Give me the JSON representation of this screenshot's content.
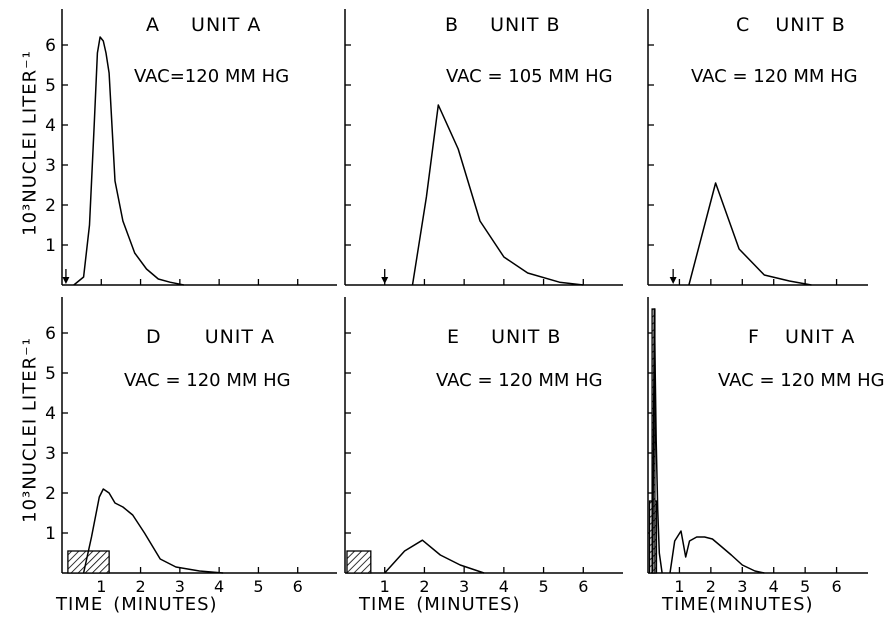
{
  "figure": {
    "y_axis_label": "10³NUCLEI LITER⁻¹",
    "x_axis_label_main": "TIME",
    "x_axis_label_unit": "(MINUTES)"
  },
  "chart_data": [
    {
      "type": "line",
      "panel": "A",
      "title_letter": "A",
      "title_unit": "UNIT A",
      "annotation": "VAC=120 MM HG",
      "x_ticks": [
        1,
        2,
        3,
        4,
        5,
        6
      ],
      "y_ticks": [
        1,
        2,
        3,
        4,
        5,
        6
      ],
      "xlim": [
        0,
        7
      ],
      "ylim": [
        0,
        6.9
      ],
      "start_marker_x": 0.1,
      "series": [
        {
          "x": [
            0.3,
            0.55,
            0.7,
            0.82,
            0.9,
            0.97,
            1.05,
            1.12,
            1.2,
            1.35,
            1.55,
            1.85,
            2.15,
            2.45,
            2.75,
            3.1
          ],
          "y": [
            0,
            0.2,
            1.5,
            4.0,
            5.8,
            6.2,
            6.1,
            5.8,
            5.3,
            2.6,
            1.6,
            0.8,
            0.4,
            0.15,
            0.07,
            0
          ]
        }
      ]
    },
    {
      "type": "line",
      "panel": "B",
      "title_letter": "B",
      "title_unit": "UNIT B",
      "annotation": "VAC = 105 MM HG",
      "x_ticks": [
        1,
        2,
        3,
        4,
        5,
        6
      ],
      "y_ticks": [
        1,
        2,
        3,
        4,
        5,
        6
      ],
      "xlim": [
        0,
        7
      ],
      "ylim": [
        0,
        6.9
      ],
      "start_marker_x": 1.0,
      "series": [
        {
          "x": [
            1.7,
            2.05,
            2.35,
            2.85,
            3.4,
            4.0,
            4.6,
            5.4,
            6.0
          ],
          "y": [
            0,
            2.2,
            4.5,
            3.4,
            1.6,
            0.7,
            0.3,
            0.07,
            0
          ]
        }
      ]
    },
    {
      "type": "line",
      "panel": "C",
      "title_letter": "C",
      "title_unit": "UNIT B",
      "annotation": "VAC = 120 MM HG",
      "x_ticks": [
        1,
        2,
        3,
        4,
        5,
        6
      ],
      "y_ticks": [
        1,
        2,
        3,
        4,
        5,
        6
      ],
      "xlim": [
        0,
        7
      ],
      "ylim": [
        0,
        6.9
      ],
      "start_marker_x": 0.8,
      "series": [
        {
          "x": [
            1.3,
            2.15,
            2.9,
            3.7,
            4.5,
            5.2
          ],
          "y": [
            0,
            2.55,
            0.9,
            0.25,
            0.1,
            0
          ]
        }
      ]
    },
    {
      "type": "line",
      "panel": "D",
      "title_letter": "D",
      "title_unit": "UNIT A",
      "annotation": "VAC = 120 MM HG",
      "x_ticks": [
        1,
        2,
        3,
        4,
        5,
        6
      ],
      "y_ticks": [
        1,
        2,
        3,
        4,
        5,
        6
      ],
      "xlim": [
        0,
        7
      ],
      "ylim": [
        0,
        6.9
      ],
      "hatched_bars": [
        {
          "x0": 0.15,
          "x1": 1.2,
          "y": 0.55
        }
      ],
      "series": [
        {
          "x": [
            0.55,
            0.75,
            0.95,
            1.05,
            1.2,
            1.35,
            1.55,
            1.8,
            2.1,
            2.5,
            2.9,
            3.5,
            4.1
          ],
          "y": [
            0,
            0.9,
            1.9,
            2.1,
            2.0,
            1.75,
            1.65,
            1.45,
            1.0,
            0.35,
            0.15,
            0.05,
            0
          ]
        }
      ]
    },
    {
      "type": "line",
      "panel": "E",
      "title_letter": "E",
      "title_unit": "UNIT B",
      "annotation": "VAC = 120 MM HG",
      "x_ticks": [
        1,
        2,
        3,
        4,
        5,
        6
      ],
      "y_ticks": [
        1,
        2,
        3,
        4,
        5,
        6
      ],
      "xlim": [
        0,
        7
      ],
      "ylim": [
        0,
        6.9
      ],
      "hatched_bars": [
        {
          "x0": 0.05,
          "x1": 0.65,
          "y": 0.55
        }
      ],
      "series": [
        {
          "x": [
            1.0,
            1.5,
            1.95,
            2.4,
            2.9,
            3.5
          ],
          "y": [
            0,
            0.55,
            0.82,
            0.45,
            0.2,
            0
          ]
        }
      ]
    },
    {
      "type": "line",
      "panel": "F",
      "title_letter": "F",
      "title_unit": "UNIT A",
      "annotation": "VAC = 120 MM HG",
      "x_ticks": [
        1,
        2,
        3,
        4,
        5,
        6
      ],
      "y_ticks": [
        1,
        2,
        3,
        4,
        5,
        6
      ],
      "xlim": [
        0,
        7
      ],
      "ylim": [
        0,
        6.9
      ],
      "hatched_bars": [
        {
          "x0": 0.05,
          "x1": 0.27,
          "y": 1.8
        },
        {
          "x0": 0.13,
          "x1": 0.22,
          "y": 6.6
        }
      ],
      "series": [
        {
          "x": [
            0.15,
            0.2,
            0.26,
            0.31,
            0.36,
            0.45
          ],
          "y": [
            0,
            6.6,
            3.3,
            1.6,
            0.5,
            0
          ]
        },
        {
          "x": [
            0.7,
            0.85,
            1.05,
            1.2,
            1.32,
            1.55,
            1.8,
            2.05,
            2.35,
            2.65,
            3.0,
            3.4,
            3.7
          ],
          "y": [
            0,
            0.8,
            1.05,
            0.4,
            0.8,
            0.9,
            0.9,
            0.85,
            0.65,
            0.45,
            0.2,
            0.05,
            0
          ]
        }
      ]
    }
  ]
}
